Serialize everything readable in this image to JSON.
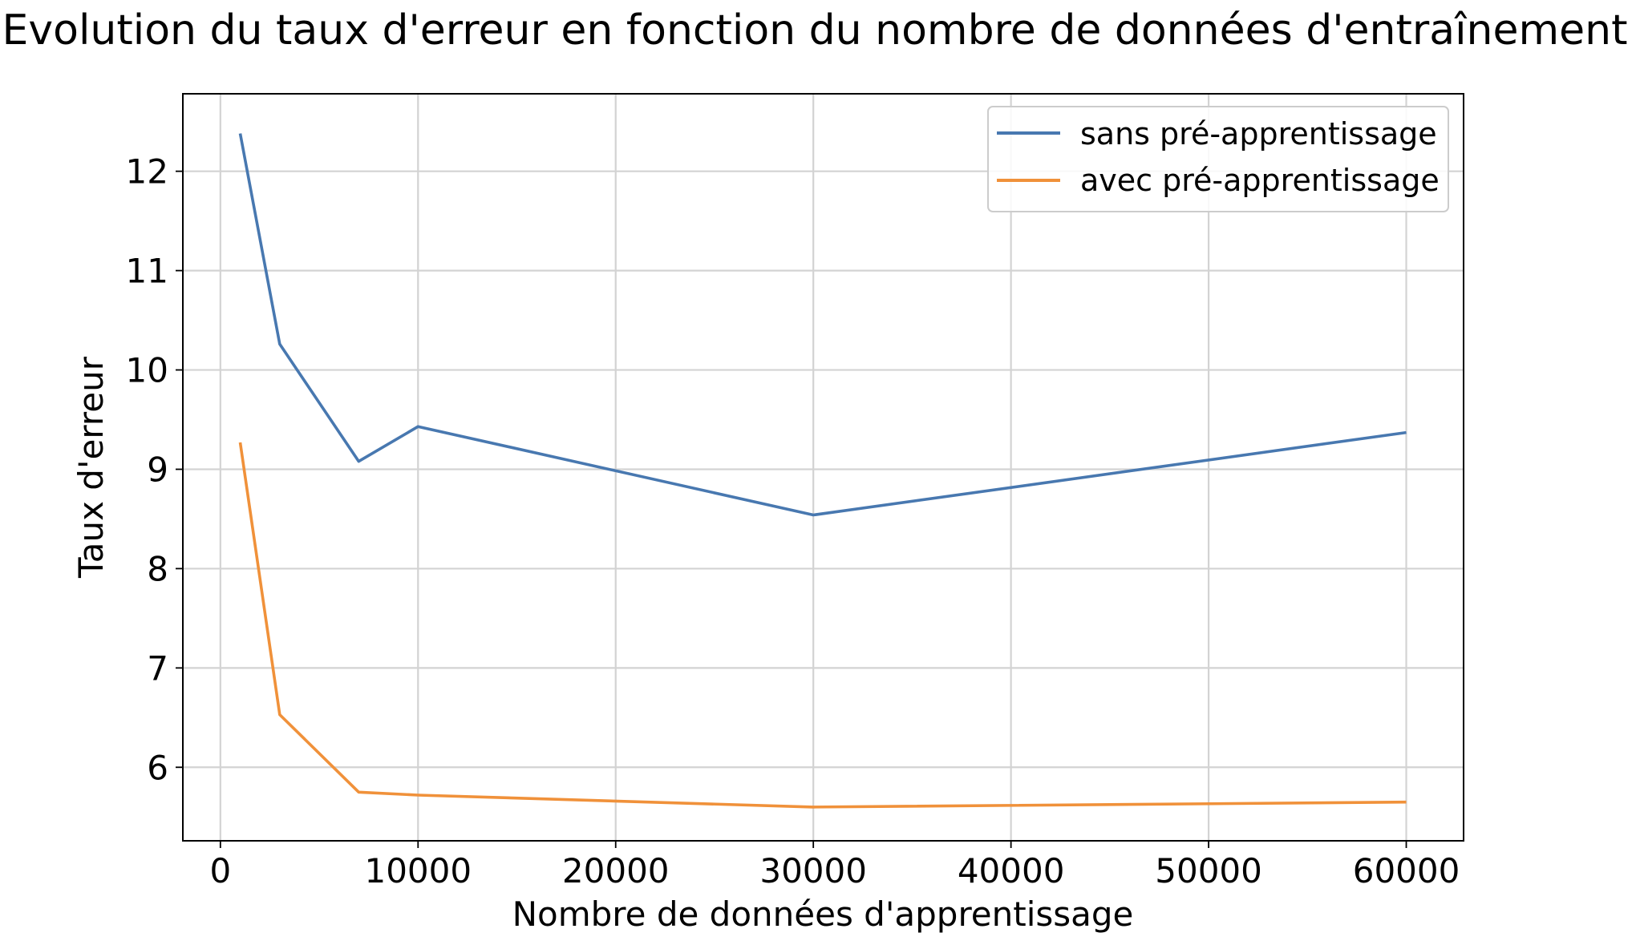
{
  "chart_data": {
    "type": "line",
    "title": "Evolution du taux d'erreur en fonction du nombre de données d'entraînement",
    "xlabel": "Nombre de données d'apprentissage",
    "ylabel": "Taux d'erreur",
    "xlim": [
      -1900,
      62900
    ],
    "ylim": [
      5.26,
      12.78
    ],
    "xticks": [
      0,
      10000,
      20000,
      30000,
      40000,
      50000,
      60000
    ],
    "xtick_labels": [
      "0",
      "10000",
      "20000",
      "30000",
      "40000",
      "50000",
      "60000"
    ],
    "yticks": [
      6,
      7,
      8,
      9,
      10,
      11,
      12
    ],
    "ytick_labels": [
      "6",
      "7",
      "8",
      "9",
      "10",
      "11",
      "12"
    ],
    "grid": true,
    "legend_position": "top-right",
    "series": [
      {
        "name": "sans pré-apprentissage",
        "color": "#4878b0",
        "x": [
          1000,
          3000,
          7000,
          10000,
          30000,
          60000
        ],
        "y": [
          12.38,
          10.26,
          9.08,
          9.43,
          8.54,
          9.37
        ]
      },
      {
        "name": "avec pré-apprentissage",
        "color": "#f0913a",
        "x": [
          1000,
          3000,
          7000,
          10000,
          30000,
          60000
        ],
        "y": [
          9.27,
          6.53,
          5.75,
          5.72,
          5.6,
          5.65
        ]
      }
    ]
  }
}
